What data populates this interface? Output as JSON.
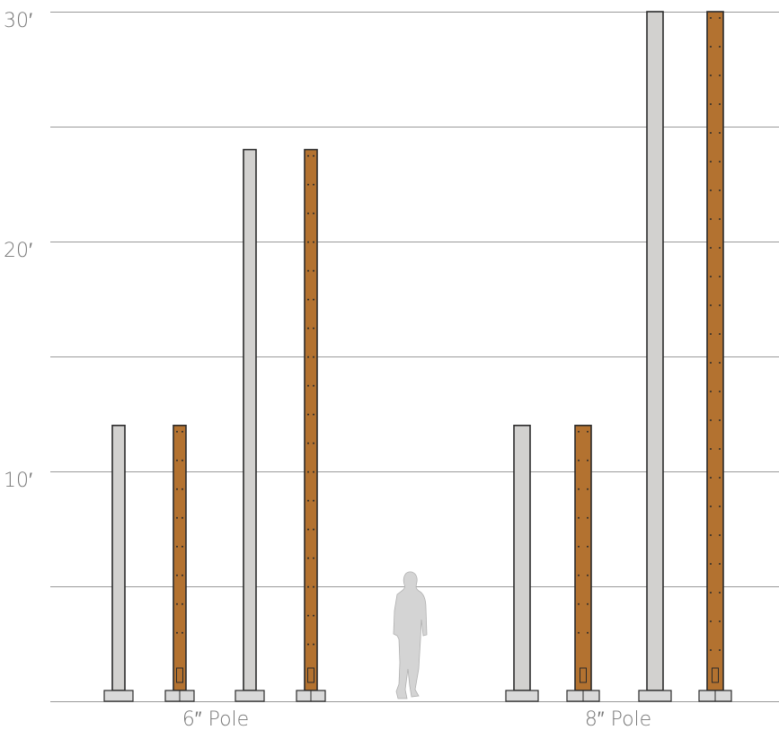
{
  "colors": {
    "gridline": "#9a9a9a",
    "label_text": "#777777",
    "steel_fill": "#d2d1cf",
    "wood_fill": "#b37230",
    "outline": "#2b2b2b",
    "base_fill": "#d9d9d9",
    "silhouette_fill": "#d4d4d4"
  },
  "axis": {
    "unit": "feet",
    "min": 0,
    "max": 30,
    "gridline_every": 5,
    "tick_labels": [
      {
        "value": 30,
        "text": "30′"
      },
      {
        "value": 20,
        "text": "20′"
      },
      {
        "value": 10,
        "text": "10′"
      }
    ]
  },
  "groups": [
    {
      "label": "6″ Pole",
      "poles": [
        {
          "material": "steel",
          "height_ft": 12
        },
        {
          "material": "wood",
          "height_ft": 12
        },
        {
          "material": "steel",
          "height_ft": 24
        },
        {
          "material": "wood",
          "height_ft": 24
        }
      ]
    },
    {
      "label": "8″ Pole",
      "poles": [
        {
          "material": "steel",
          "height_ft": 12
        },
        {
          "material": "wood",
          "height_ft": 12
        },
        {
          "material": "steel",
          "height_ft": 30
        },
        {
          "material": "wood",
          "height_ft": 30
        }
      ]
    }
  ],
  "scale_figure": {
    "name": "human-silhouette"
  }
}
